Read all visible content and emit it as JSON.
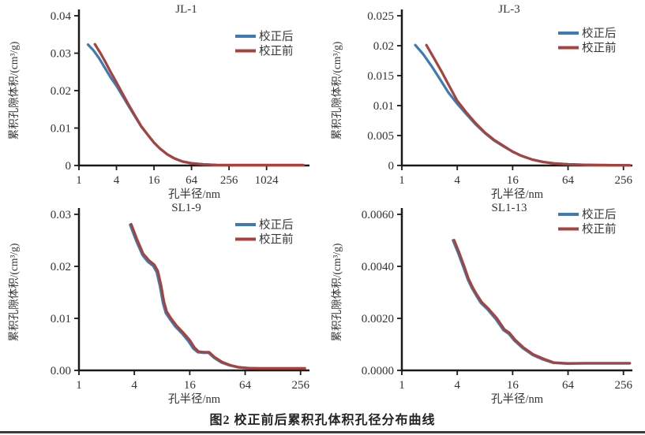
{
  "figure_caption": "图2  校正前后累积孔体积孔径分布曲线",
  "colors": {
    "after": "#3e7bb4",
    "before": "#a7433e",
    "axis": "#1a1a1a",
    "text": "#333333",
    "rule": "#3c3c3c"
  },
  "legend_labels": {
    "after": "校正后",
    "before": "校正前"
  },
  "axis_labels": {
    "x": "孔半径/nm",
    "y": "累积孔隙体积/(cm³/g)"
  },
  "chart_data": [
    {
      "type": "line",
      "title": "JL-1",
      "xlabel": "孔半径/nm",
      "ylabel": "累积孔隙体积/(cm³/g)",
      "xscale": "log4",
      "xlim": [
        1,
        5000
      ],
      "ylim": [
        0,
        0.04
      ],
      "grid": false,
      "legend_position": "top-right",
      "legend_dy": 26,
      "xticks": [
        {
          "v": 1,
          "label": "1"
        },
        {
          "v": 4,
          "label": "4"
        },
        {
          "v": 16,
          "label": "16"
        },
        {
          "v": 64,
          "label": "64"
        },
        {
          "v": 256,
          "label": "256"
        },
        {
          "v": 1024,
          "label": "1024"
        }
      ],
      "yticks": [
        {
          "v": 0,
          "label": "0"
        },
        {
          "v": 0.01,
          "label": "0.01"
        },
        {
          "v": 0.02,
          "label": "0.02"
        },
        {
          "v": 0.03,
          "label": "0.03"
        },
        {
          "v": 0.04,
          "label": "0.04"
        }
      ],
      "series": [
        {
          "name": "校正后",
          "key": "after",
          "points": [
            [
              1.4,
              0.0323
            ],
            [
              1.7,
              0.0308
            ],
            [
              2.1,
              0.0287
            ],
            [
              2.6,
              0.0261
            ],
            [
              3.2,
              0.0236
            ],
            [
              4,
              0.0213
            ],
            [
              5,
              0.0186
            ],
            [
              6.3,
              0.0158
            ],
            [
              8,
              0.013
            ],
            [
              10,
              0.0104
            ],
            [
              13,
              0.008
            ],
            [
              16,
              0.0061
            ],
            [
              20,
              0.0045
            ],
            [
              26,
              0.003
            ],
            [
              34,
              0.0019
            ],
            [
              45,
              0.0011
            ],
            [
              64,
              0.0006
            ],
            [
              100,
              0.0003
            ],
            [
              160,
              0.00015
            ],
            [
              256,
              0.0001
            ],
            [
              512,
              0.0001
            ],
            [
              1024,
              0.0001
            ],
            [
              2048,
              0.0001
            ],
            [
              4000,
              0.0001
            ]
          ]
        },
        {
          "name": "校正前",
          "key": "before",
          "points": [
            [
              1.8,
              0.0324
            ],
            [
              2.2,
              0.0301
            ],
            [
              2.7,
              0.0274
            ],
            [
              3.3,
              0.0247
            ],
            [
              4,
              0.0222
            ],
            [
              5,
              0.0192
            ],
            [
              6.3,
              0.0162
            ],
            [
              8,
              0.0132
            ],
            [
              10,
              0.0105
            ],
            [
              13,
              0.008
            ],
            [
              16,
              0.0061
            ],
            [
              20,
              0.0045
            ],
            [
              26,
              0.003
            ],
            [
              34,
              0.0019
            ],
            [
              45,
              0.0011
            ],
            [
              64,
              0.0006
            ],
            [
              100,
              0.0003
            ],
            [
              160,
              0.00015
            ],
            [
              256,
              0.0001
            ],
            [
              512,
              0.0001
            ],
            [
              1024,
              0.0001
            ],
            [
              2048,
              0.0001
            ],
            [
              4000,
              0.0001
            ]
          ]
        }
      ]
    },
    {
      "type": "line",
      "title": "JL-3",
      "xlabel": "孔半径/nm",
      "ylabel": "累积孔隙体积/(cm³/g)",
      "xscale": "log4",
      "xlim": [
        1,
        320
      ],
      "ylim": [
        0,
        0.025
      ],
      "grid": false,
      "legend_position": "top-right",
      "legend_dy": 22,
      "xticks": [
        {
          "v": 1,
          "label": "1"
        },
        {
          "v": 4,
          "label": "4"
        },
        {
          "v": 16,
          "label": "16"
        },
        {
          "v": 64,
          "label": "64"
        },
        {
          "v": 256,
          "label": "256"
        }
      ],
      "yticks": [
        {
          "v": 0,
          "label": "0"
        },
        {
          "v": 0.005,
          "label": "0.005"
        },
        {
          "v": 0.01,
          "label": "0.01"
        },
        {
          "v": 0.015,
          "label": "0.015"
        },
        {
          "v": 0.02,
          "label": "0.02"
        },
        {
          "v": 0.025,
          "label": "0.025"
        }
      ],
      "series": [
        {
          "name": "校正后",
          "key": "after",
          "points": [
            [
              1.4,
              0.0201
            ],
            [
              1.7,
              0.0186
            ],
            [
              2.1,
              0.0166
            ],
            [
              2.6,
              0.0144
            ],
            [
              3.2,
              0.0122
            ],
            [
              4,
              0.0103
            ],
            [
              5,
              0.0086
            ],
            [
              6.3,
              0.0069
            ],
            [
              8,
              0.0054
            ],
            [
              10,
              0.0042
            ],
            [
              13,
              0.0031
            ],
            [
              16,
              0.0023
            ],
            [
              20,
              0.0016
            ],
            [
              26,
              0.001
            ],
            [
              34,
              0.0006
            ],
            [
              45,
              0.00035
            ],
            [
              64,
              0.0002
            ],
            [
              100,
              0.0001
            ],
            [
              160,
              6e-05
            ],
            [
              256,
              4e-05
            ],
            [
              300,
              4e-05
            ]
          ]
        },
        {
          "name": "校正前",
          "key": "before",
          "points": [
            [
              1.85,
              0.0201
            ],
            [
              2.2,
              0.0181
            ],
            [
              2.7,
              0.0157
            ],
            [
              3.3,
              0.0132
            ],
            [
              4,
              0.0108
            ],
            [
              5,
              0.0089
            ],
            [
              6.3,
              0.0071
            ],
            [
              8,
              0.0055
            ],
            [
              10,
              0.0043
            ],
            [
              13,
              0.0032
            ],
            [
              16,
              0.0023
            ],
            [
              20,
              0.0016
            ],
            [
              26,
              0.001
            ],
            [
              34,
              0.0006
            ],
            [
              45,
              0.00035
            ],
            [
              64,
              0.0002
            ],
            [
              100,
              0.0001
            ],
            [
              160,
              6e-05
            ],
            [
              256,
              4e-05
            ],
            [
              300,
              4e-05
            ]
          ]
        }
      ]
    },
    {
      "type": "line",
      "title": "SL1-9",
      "xlabel": "孔半径/nm",
      "ylabel": "累积孔隙体积/(cm³/g)",
      "xscale": "log4",
      "xlim": [
        1,
        320
      ],
      "ylim": [
        0,
        0.03
      ],
      "grid": false,
      "legend_position": "top-right",
      "legend_dy": 13,
      "xticks": [
        {
          "v": 1,
          "label": "1"
        },
        {
          "v": 4,
          "label": "4"
        },
        {
          "v": 16,
          "label": "16"
        },
        {
          "v": 64,
          "label": "64"
        },
        {
          "v": 256,
          "label": "256"
        }
      ],
      "yticks": [
        {
          "v": 0,
          "label": "0.00"
        },
        {
          "v": 0.01,
          "label": "0.01"
        },
        {
          "v": 0.02,
          "label": "0.02"
        },
        {
          "v": 0.03,
          "label": "0.03"
        }
      ],
      "series": [
        {
          "name": "校正后",
          "key": "after",
          "points": [
            [
              3.6,
              0.028
            ],
            [
              4.2,
              0.0249
            ],
            [
              4.9,
              0.0222
            ],
            [
              5.6,
              0.0209
            ],
            [
              6.4,
              0.0201
            ],
            [
              7,
              0.0189
            ],
            [
              7.6,
              0.0161
            ],
            [
              8.2,
              0.0129
            ],
            [
              8.8,
              0.011
            ],
            [
              9.8,
              0.0098
            ],
            [
              11.2,
              0.0084
            ],
            [
              13.2,
              0.0071
            ],
            [
              15.5,
              0.0056
            ],
            [
              17.5,
              0.0042
            ],
            [
              19.5,
              0.0035
            ],
            [
              22.5,
              0.0034
            ],
            [
              25.5,
              0.0034
            ],
            [
              29.5,
              0.0024
            ],
            [
              35.5,
              0.0015
            ],
            [
              43.5,
              0.00095
            ],
            [
              54,
              0.00058
            ],
            [
              69,
              0.00042
            ],
            [
              90,
              0.00038
            ],
            [
              130,
              0.00038
            ],
            [
              200,
              0.00038
            ],
            [
              285,
              0.00038
            ]
          ]
        },
        {
          "name": "校正前",
          "key": "before",
          "points": [
            [
              3.7,
              0.0281
            ],
            [
              4.3,
              0.0251
            ],
            [
              5,
              0.0224
            ],
            [
              5.8,
              0.0211
            ],
            [
              6.6,
              0.0203
            ],
            [
              7.2,
              0.0191
            ],
            [
              7.8,
              0.0164
            ],
            [
              8.4,
              0.0132
            ],
            [
              9,
              0.0113
            ],
            [
              10,
              0.01
            ],
            [
              11.5,
              0.0086
            ],
            [
              13.5,
              0.0073
            ],
            [
              16,
              0.0058
            ],
            [
              18,
              0.0044
            ],
            [
              20,
              0.0036
            ],
            [
              23,
              0.0035
            ],
            [
              26,
              0.0035
            ],
            [
              30,
              0.0025
            ],
            [
              36,
              0.0016
            ],
            [
              44,
              0.001
            ],
            [
              55,
              0.0006
            ],
            [
              70,
              0.00044
            ],
            [
              92,
              0.0004
            ],
            [
              130,
              0.0004
            ],
            [
              200,
              0.0004
            ],
            [
              285,
              0.0004
            ]
          ]
        }
      ]
    },
    {
      "type": "line",
      "title": "SL1-13",
      "xlabel": "孔半径/nm",
      "ylabel": "累积孔隙体积/(cm³/g)",
      "xscale": "log4",
      "xlim": [
        1,
        320
      ],
      "ylim": [
        0,
        0.006
      ],
      "grid": false,
      "legend_position": "top-right",
      "legend_dy": 0,
      "xticks": [
        {
          "v": 1,
          "label": "1"
        },
        {
          "v": 4,
          "label": "4"
        },
        {
          "v": 16,
          "label": "16"
        },
        {
          "v": 64,
          "label": "64"
        },
        {
          "v": 256,
          "label": "256"
        }
      ],
      "yticks": [
        {
          "v": 0,
          "label": "0.0000"
        },
        {
          "v": 0.002,
          "label": "0.0020"
        },
        {
          "v": 0.004,
          "label": "0.0040"
        },
        {
          "v": 0.006,
          "label": "0.0060"
        }
      ],
      "series": [
        {
          "name": "校正后",
          "key": "after",
          "points": [
            [
              3.6,
              0.005
            ],
            [
              4.1,
              0.00451
            ],
            [
              4.7,
              0.00394
            ],
            [
              5.2,
              0.0035
            ],
            [
              5.8,
              0.00315
            ],
            [
              6.4,
              0.00289
            ],
            [
              7.2,
              0.0026
            ],
            [
              8.5,
              0.00235
            ],
            [
              10.5,
              0.00197
            ],
            [
              12.7,
              0.00155
            ],
            [
              14.5,
              0.00141
            ],
            [
              16.7,
              0.00115
            ],
            [
              20.5,
              0.00086
            ],
            [
              26.5,
              0.00059
            ],
            [
              34,
              0.00042
            ],
            [
              44,
              0.00029
            ],
            [
              62,
              0.00026
            ],
            [
              100,
              0.00027
            ],
            [
              160,
              0.00027
            ],
            [
              256,
              0.00027
            ],
            [
              300,
              0.00027
            ]
          ]
        },
        {
          "name": "校正前",
          "key": "before",
          "points": [
            [
              3.7,
              0.00501
            ],
            [
              4.2,
              0.00453
            ],
            [
              4.8,
              0.00397
            ],
            [
              5.3,
              0.00353
            ],
            [
              5.9,
              0.00318
            ],
            [
              6.5,
              0.00292
            ],
            [
              7.4,
              0.00262
            ],
            [
              8.7,
              0.00238
            ],
            [
              10.8,
              0.002
            ],
            [
              13,
              0.00158
            ],
            [
              14.8,
              0.00144
            ],
            [
              17,
              0.00118
            ],
            [
              21,
              0.00088
            ],
            [
              27,
              0.00061
            ],
            [
              35,
              0.00044
            ],
            [
              45,
              0.0003
            ],
            [
              64,
              0.00027
            ],
            [
              100,
              0.00028
            ],
            [
              160,
              0.00028
            ],
            [
              256,
              0.00028
            ],
            [
              300,
              0.00028
            ]
          ]
        }
      ]
    }
  ]
}
